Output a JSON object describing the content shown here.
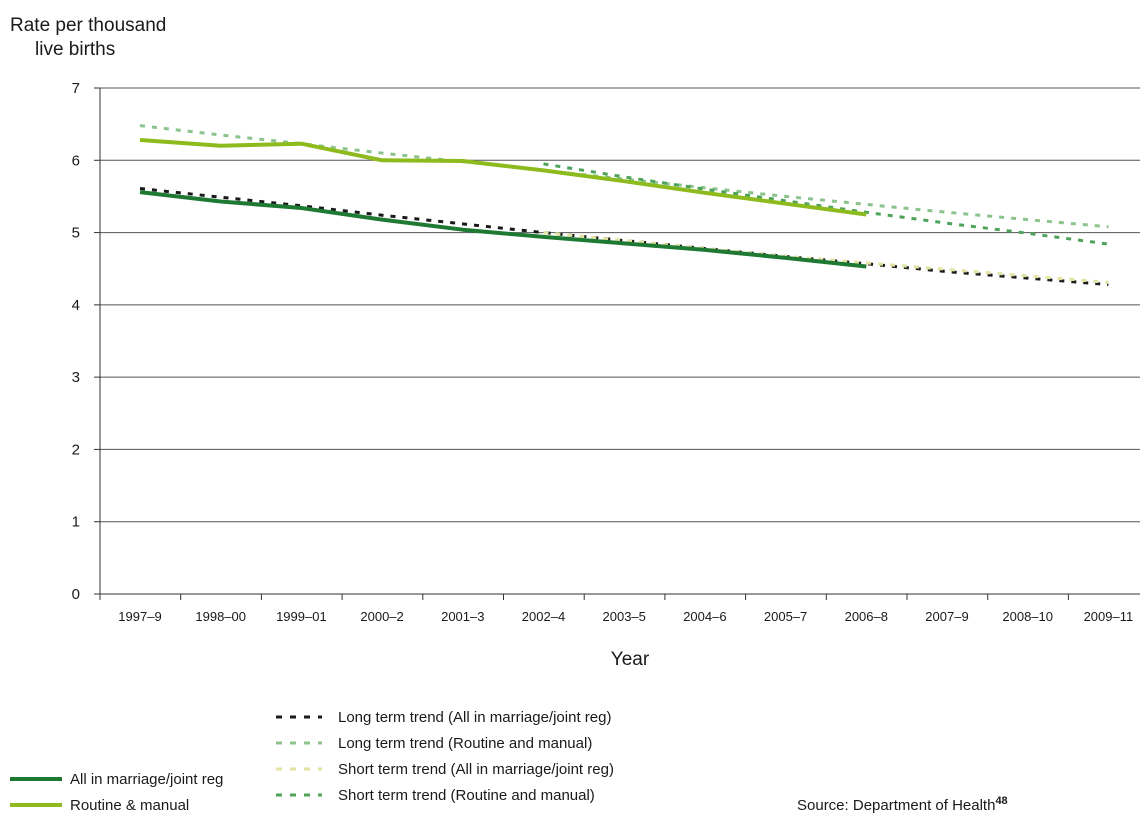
{
  "chart_data": {
    "type": "line",
    "ylabel": [
      "Rate per thousand",
      "live births"
    ],
    "xlabel": "Year",
    "ylim": [
      0,
      7
    ],
    "yticks": [
      "0",
      "1",
      "2",
      "3",
      "4",
      "5",
      "6",
      "7"
    ],
    "categories": [
      "1997–9",
      "1998–00",
      "1999–01",
      "2000–2",
      "2001–3",
      "2002–4",
      "2003–5",
      "2004–6",
      "2005–7",
      "2006–8",
      "2007–9",
      "2008–10",
      "2009–11"
    ],
    "grid": "horizontal",
    "series": [
      {
        "name": "All in marriage/joint reg",
        "style": "solid",
        "color": "#1e7a32",
        "values": [
          5.56,
          5.43,
          5.34,
          5.18,
          5.04,
          4.94,
          4.85,
          4.76,
          4.65,
          4.53,
          null,
          null,
          null
        ]
      },
      {
        "name": "Routine & manual",
        "style": "solid",
        "color": "#8dba1c",
        "values": [
          6.28,
          6.2,
          6.23,
          6.0,
          5.99,
          5.86,
          5.71,
          5.55,
          5.4,
          5.25,
          null,
          null,
          null
        ]
      },
      {
        "name": "Long term trend (All in marriage/joint reg)",
        "style": "dash",
        "color": "#1a1a1a",
        "values": [
          5.61,
          5.49,
          5.37,
          5.24,
          5.12,
          5.0,
          4.89,
          4.78,
          4.67,
          4.57,
          4.46,
          4.37,
          4.28
        ]
      },
      {
        "name": "Long term trend (Routine and manual)",
        "style": "dash",
        "color": "#8cc38c",
        "values": [
          6.48,
          6.35,
          6.23,
          6.1,
          5.98,
          5.86,
          5.74,
          5.62,
          5.5,
          5.39,
          5.28,
          5.18,
          5.08
        ]
      },
      {
        "name": "Short term trend (All in marriage/joint reg)",
        "style": "dash",
        "color": "#e3e3a3",
        "values": [
          null,
          null,
          null,
          null,
          null,
          5.0,
          4.89,
          4.78,
          4.67,
          4.58,
          4.49,
          4.4,
          4.31
        ]
      },
      {
        "name": "Short term trend (Routine and manual)",
        "style": "dash",
        "color": "#4ea35a",
        "values": [
          null,
          null,
          null,
          null,
          null,
          5.95,
          5.77,
          5.6,
          5.44,
          5.28,
          5.13,
          4.99,
          4.84
        ]
      }
    ],
    "legend_position": "bottom",
    "source": "Source: Department of Health",
    "source_ref": "48"
  }
}
